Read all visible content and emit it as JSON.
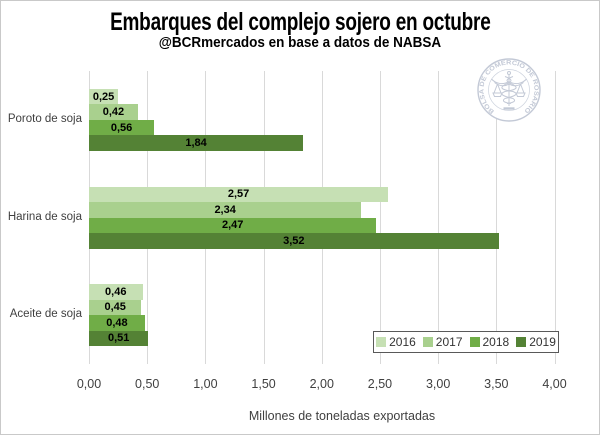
{
  "title": "Embarques del complejo sojero en octubre",
  "subtitle": "@BCRmercados en base a datos de NABSA",
  "x_axis_title": "Millones de toneladas exportadas",
  "logo": {
    "text": "BOLSA DE COMERCIO DE ROSARIO",
    "color": "#c3c9d6"
  },
  "colors": {
    "grid": "#d9d9d9",
    "axis_text": "#3f3f3f",
    "legend_border": "#595959"
  },
  "chart_data": {
    "type": "bar",
    "orientation": "horizontal",
    "title": "Embarques del complejo sojero en octubre",
    "subtitle": "@BCRmercados en base a datos de NABSA",
    "xlabel": "Millones de toneladas exportadas",
    "categories": [
      "Poroto de soja",
      "Harina de soja",
      "Aceite de soja"
    ],
    "series": [
      {
        "name": "2016",
        "color": "#c6e0b4",
        "values": [
          0.25,
          2.57,
          0.46
        ],
        "labels": [
          "0,25",
          "2,57",
          "0,46"
        ]
      },
      {
        "name": "2017",
        "color": "#a9d08e",
        "values": [
          0.42,
          2.34,
          0.45
        ],
        "labels": [
          "0,42",
          "2,34",
          "0,45"
        ]
      },
      {
        "name": "2018",
        "color": "#70ad47",
        "values": [
          0.56,
          2.47,
          0.48
        ],
        "labels": [
          "0,56",
          "2,47",
          "0,48"
        ]
      },
      {
        "name": "2019",
        "color": "#548235",
        "values": [
          1.84,
          3.52,
          0.51
        ],
        "labels": [
          "1,84",
          "3,52",
          "0,51"
        ]
      }
    ],
    "xlim": [
      0,
      4
    ],
    "xticks": [
      "0,00",
      "0,50",
      "1,00",
      "1,50",
      "2,00",
      "2,50",
      "3,00",
      "3,50",
      "4,00"
    ],
    "legend_position": "bottom-right",
    "grid": true
  }
}
